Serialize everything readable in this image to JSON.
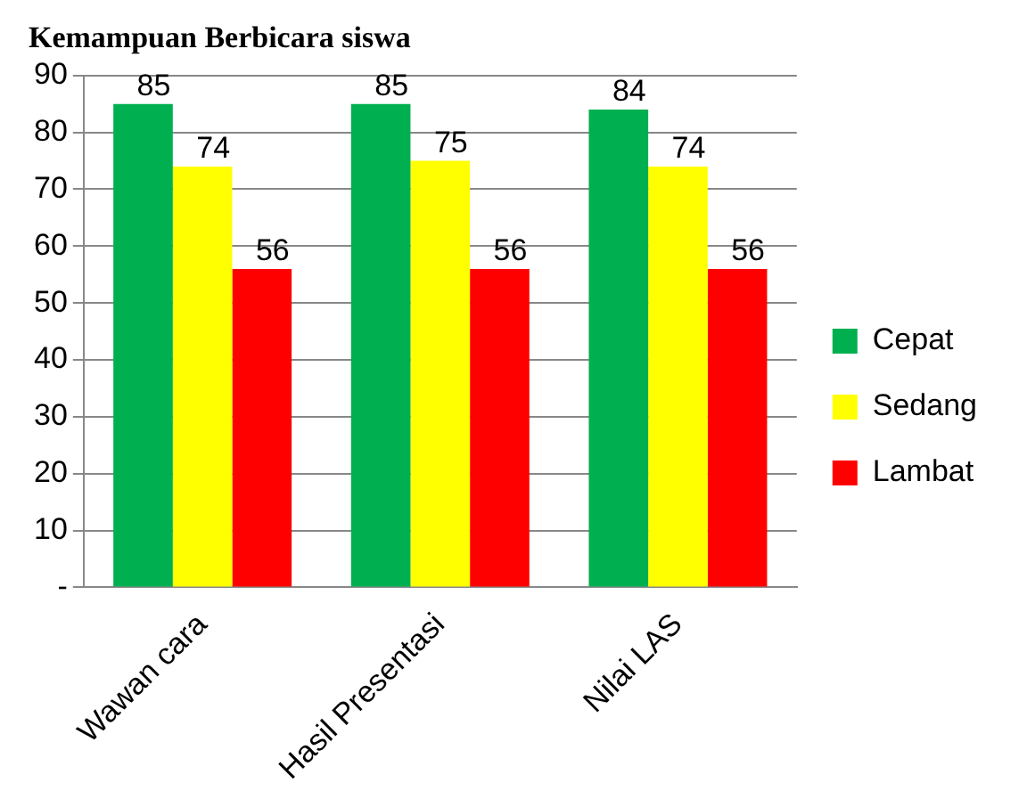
{
  "chart_data": {
    "type": "bar",
    "title": "Kemampuan Berbicara siswa",
    "categories": [
      "Wawan cara",
      "Hasil Presentasi",
      "Nilai LAS"
    ],
    "series": [
      {
        "name": "Cepat",
        "color": "#00b050",
        "values": [
          85,
          85,
          84
        ]
      },
      {
        "name": "Sedang",
        "color": "#ffff00",
        "values": [
          74,
          75,
          74
        ]
      },
      {
        "name": "Lambat",
        "color": "#ff0000",
        "values": [
          56,
          56,
          56
        ]
      }
    ],
    "ylim": [
      0,
      90
    ],
    "yticks": [
      {
        "value": 0,
        "label": "-"
      },
      10,
      20,
      30,
      40,
      50,
      60,
      70,
      80,
      90
    ],
    "grid": "y",
    "legend": "right",
    "data_labels": true
  }
}
